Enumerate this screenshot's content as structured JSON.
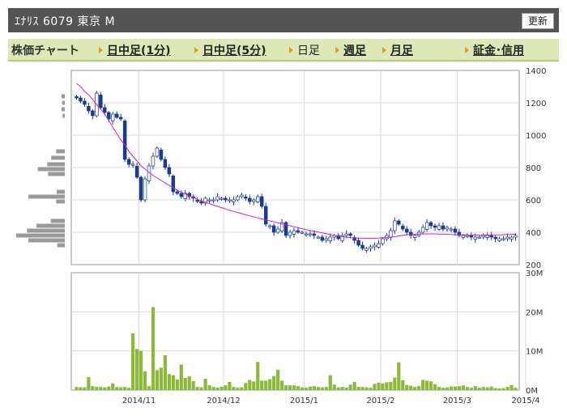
{
  "header": {
    "title": "ｴﾅﾘｽ  6079  東京 M",
    "refresh_label": "更新"
  },
  "nav": {
    "label": "株価チャート",
    "items": [
      {
        "label": "日中足(1分)",
        "link": true
      },
      {
        "label": "日中足(5分)",
        "link": true
      },
      {
        "label": "日足",
        "link": false
      },
      {
        "label": "週足",
        "link": true
      },
      {
        "label": "月足",
        "link": true
      },
      {
        "label": "証金･信用",
        "link": true
      }
    ]
  },
  "chart_data": [
    {
      "type": "candlestick",
      "title": "",
      "ylim": [
        200,
        1400
      ],
      "yticks": [
        "1400",
        "1200",
        "1000",
        "800",
        "600",
        "400",
        "200"
      ],
      "xticks": [
        "2014/11",
        "2014/12",
        "2015/1",
        "2015/2",
        "2015/3",
        "2015/4"
      ],
      "colors": {
        "up": "#ffffff",
        "down": "#1b3b8c",
        "ma": "#d21fd2",
        "volume_profile": "#999999",
        "volume": "#8db93a"
      },
      "closes": [
        1230,
        1210,
        1190,
        1150,
        1120,
        1260,
        1170,
        1140,
        1100,
        1130,
        1110,
        1100,
        850,
        820,
        820,
        740,
        600,
        730,
        810,
        870,
        920,
        850,
        800,
        760,
        650,
        640,
        620,
        640,
        620,
        610,
        590,
        580,
        610,
        600,
        600,
        620,
        610,
        600,
        600,
        600,
        620,
        630,
        610,
        590,
        600,
        620,
        560,
        450,
        440,
        400,
        420,
        460,
        380,
        400,
        410,
        400,
        400,
        390,
        390,
        380,
        370,
        350,
        360,
        370,
        380,
        360,
        380,
        390,
        380,
        350,
        320,
        300,
        300,
        310,
        320,
        330,
        360,
        380,
        410,
        470,
        450,
        420,
        400,
        380,
        380,
        400,
        430,
        460,
        440,
        430,
        440,
        420,
        430,
        420,
        400,
        380,
        380,
        380,
        370,
        370,
        370,
        380,
        380,
        370,
        360,
        360,
        360,
        370,
        370,
        380
      ],
      "moving_average": [
        1320,
        1300,
        1270,
        1250,
        1220,
        1190,
        1160,
        1130,
        1090,
        1050,
        1010,
        970,
        940,
        900,
        870,
        840,
        810,
        790,
        770,
        750,
        735,
        720,
        705,
        690,
        675,
        660,
        648,
        636,
        625,
        614,
        604,
        594,
        585,
        576,
        568,
        560,
        552,
        544,
        536,
        529,
        522,
        515,
        508,
        501,
        495,
        489,
        482,
        476,
        470,
        464,
        458,
        452,
        446,
        440,
        434,
        428,
        422,
        416,
        411,
        406,
        401,
        396,
        391,
        386,
        381,
        377,
        373,
        370,
        367,
        365,
        364,
        363,
        362,
        362,
        363,
        364,
        366,
        368,
        370,
        373,
        377,
        381,
        384,
        386,
        388,
        389,
        390,
        390,
        390,
        390,
        389,
        388,
        387,
        386,
        385,
        384,
        384,
        384,
        383,
        383,
        383,
        383,
        383,
        383,
        384,
        384,
        385,
        386,
        387,
        388
      ],
      "volume_profile": [
        {
          "price": 1240,
          "value": 0.12
        },
        {
          "price": 1200,
          "value": 0.1
        },
        {
          "price": 1160,
          "value": 0.12
        },
        {
          "price": 1120,
          "value": 0.08
        },
        {
          "price": 900,
          "value": 0.32
        },
        {
          "price": 860,
          "value": 0.5
        },
        {
          "price": 820,
          "value": 0.65
        },
        {
          "price": 790,
          "value": 1.0
        },
        {
          "price": 760,
          "value": 0.62
        },
        {
          "price": 650,
          "value": 0.3
        },
        {
          "price": 620,
          "value": 1.35
        },
        {
          "price": 590,
          "value": 0.32
        },
        {
          "price": 470,
          "value": 0.52
        },
        {
          "price": 440,
          "value": 1.05
        },
        {
          "price": 410,
          "value": 1.4
        },
        {
          "price": 380,
          "value": 1.8
        },
        {
          "price": 350,
          "value": 1.35
        },
        {
          "price": 320,
          "value": 0.28
        }
      ]
    },
    {
      "type": "bar",
      "ylim": [
        0,
        30
      ],
      "yticks": [
        "30M",
        "20M",
        "10M",
        "0M"
      ],
      "volumes": [
        0.8,
        0.7,
        0.7,
        3.3,
        1,
        0.8,
        0.8,
        0.7,
        0.9,
        1.7,
        0.8,
        0.7,
        0.8,
        0.6,
        14.5,
        10.5,
        10,
        4.8,
        1,
        21.2,
        5.1,
        5.7,
        8.9,
        4.1,
        3.8,
        2.7,
        6.5,
        3.1,
        3.5,
        2.3,
        0.8,
        0.7,
        2.9,
        1.2,
        0.8,
        0.6,
        0.8,
        1.2,
        2.1,
        0.8,
        0.6,
        0.7,
        1.8,
        2.6,
        2.2,
        7.2,
        2.4,
        2.4,
        2.8,
        3.6,
        5.2,
        2.4,
        1.2,
        1.2,
        1.2,
        1,
        0.7,
        0.6,
        0.9,
        1,
        0.8,
        0.7,
        0.8,
        3.8,
        1.4,
        0.7,
        0.8,
        0.6,
        1.4,
        2.1,
        0.8,
        0.8,
        0.7,
        0.6,
        1.6,
        1.9,
        1.7,
        2,
        2.1,
        3.2,
        7.1,
        2.5,
        1.3,
        1.1,
        0.8,
        1,
        2.6,
        2.4,
        2.2,
        1.5,
        0.8,
        0.6,
        0.7,
        0.9,
        0.9,
        1,
        1.2,
        0.8,
        0.6,
        1,
        0.6,
        0.8,
        0.7,
        0.9,
        0.5,
        0.4,
        0.5,
        0.8,
        1.3,
        0.6
      ]
    }
  ]
}
